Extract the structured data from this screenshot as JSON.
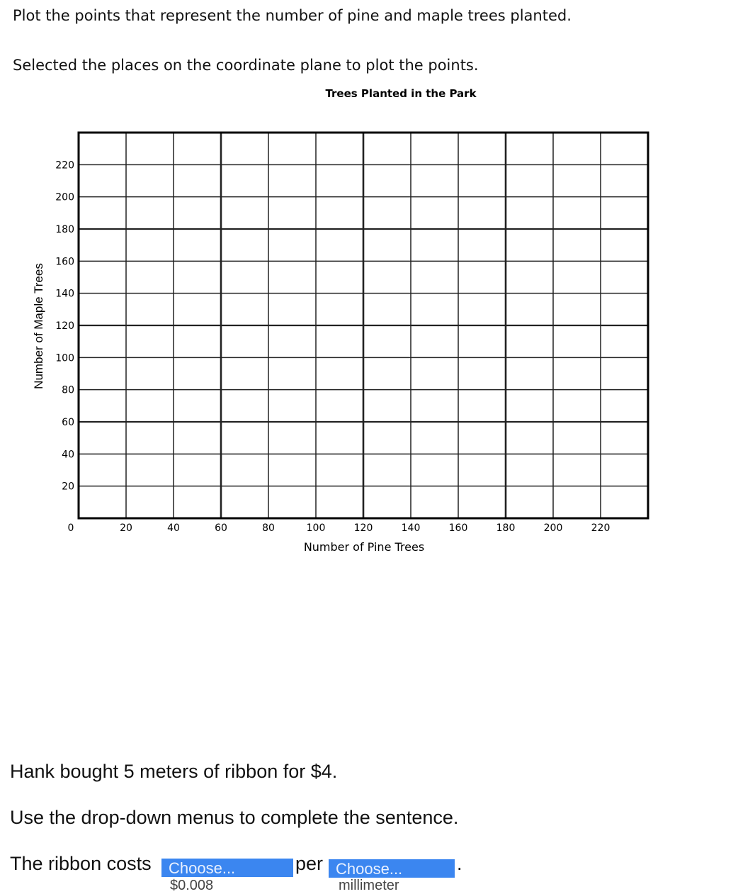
{
  "question1": {
    "prompt": "Plot the points that represent the number of pine and maple trees planted.",
    "instruction": "Selected the places on the coordinate plane to plot the points."
  },
  "chart_data": {
    "type": "scatter",
    "title": "Trees Planted in the Park",
    "xlabel": "Number of Pine Trees",
    "ylabel": "Number of Maple Trees",
    "xlim": [
      0,
      240
    ],
    "ylim": [
      0,
      240
    ],
    "xticks": [
      "0",
      "20",
      "40",
      "60",
      "80",
      "100",
      "120",
      "140",
      "160",
      "180",
      "200",
      "220"
    ],
    "yticks": [
      "20",
      "40",
      "60",
      "80",
      "100",
      "120",
      "140",
      "160",
      "180",
      "200",
      "220"
    ],
    "grid": true,
    "points": []
  },
  "question2": {
    "prompt": "Hank bought 5 meters of ribbon for $4.",
    "instruction": "Use the drop-down menus to complete the sentence.",
    "sentence_start": "The ribbon costs",
    "sentence_mid": "per",
    "sentence_end": ".",
    "dropdown1": {
      "selected": "Choose...",
      "next_option": "$0.008"
    },
    "dropdown2": {
      "selected": "Choose...",
      "next_option": "millimeter"
    },
    "dropdown_color": "#3b86f0"
  }
}
